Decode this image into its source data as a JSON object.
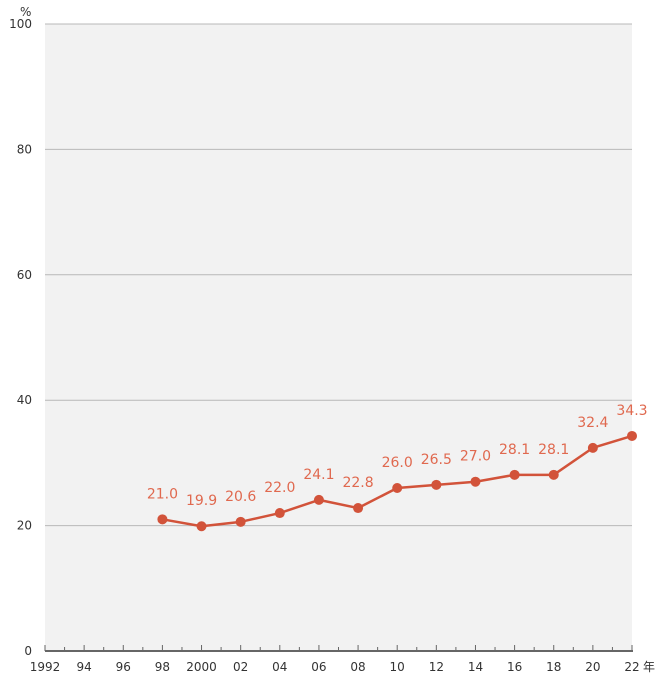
{
  "colors": {
    "plot_background": "#f2f2f2",
    "gridline": "#b8b8b8",
    "axis": "#666666",
    "series": "#d2533a",
    "data_label": "#e0694f"
  },
  "chart_data": {
    "type": "line",
    "y_unit": "%",
    "x_unit": "年",
    "ylim": [
      0,
      100
    ],
    "xlim": [
      1992,
      2022
    ],
    "grid": true,
    "y_ticks": [
      {
        "value": 0,
        "label": "0"
      },
      {
        "value": 20,
        "label": "20"
      },
      {
        "value": 40,
        "label": "40"
      },
      {
        "value": 60,
        "label": "60"
      },
      {
        "value": 80,
        "label": "80"
      },
      {
        "value": 100,
        "label": "100"
      }
    ],
    "x_ticks": [
      {
        "value": 1992,
        "label": "1992"
      },
      {
        "value": 1994,
        "label": "94"
      },
      {
        "value": 1996,
        "label": "96"
      },
      {
        "value": 1998,
        "label": "98"
      },
      {
        "value": 2000,
        "label": "2000"
      },
      {
        "value": 2002,
        "label": "02"
      },
      {
        "value": 2004,
        "label": "04"
      },
      {
        "value": 2006,
        "label": "06"
      },
      {
        "value": 2008,
        "label": "08"
      },
      {
        "value": 2010,
        "label": "10"
      },
      {
        "value": 2012,
        "label": "12"
      },
      {
        "value": 2014,
        "label": "14"
      },
      {
        "value": 2016,
        "label": "16"
      },
      {
        "value": 2018,
        "label": "18"
      },
      {
        "value": 2020,
        "label": "20"
      },
      {
        "value": 2022,
        "label": "22"
      }
    ],
    "series": [
      {
        "points": [
          {
            "x": 1998,
            "y": 21.0,
            "label": "21.0"
          },
          {
            "x": 2000,
            "y": 19.9,
            "label": "19.9"
          },
          {
            "x": 2002,
            "y": 20.6,
            "label": "20.6"
          },
          {
            "x": 2004,
            "y": 22.0,
            "label": "22.0"
          },
          {
            "x": 2006,
            "y": 24.1,
            "label": "24.1"
          },
          {
            "x": 2008,
            "y": 22.8,
            "label": "22.8"
          },
          {
            "x": 2010,
            "y": 26.0,
            "label": "26.0"
          },
          {
            "x": 2012,
            "y": 26.5,
            "label": "26.5"
          },
          {
            "x": 2014,
            "y": 27.0,
            "label": "27.0"
          },
          {
            "x": 2016,
            "y": 28.1,
            "label": "28.1"
          },
          {
            "x": 2018,
            "y": 28.1,
            "label": "28.1"
          },
          {
            "x": 2020,
            "y": 32.4,
            "label": "32.4"
          },
          {
            "x": 2022,
            "y": 34.3,
            "label": "34.3"
          }
        ]
      }
    ]
  }
}
